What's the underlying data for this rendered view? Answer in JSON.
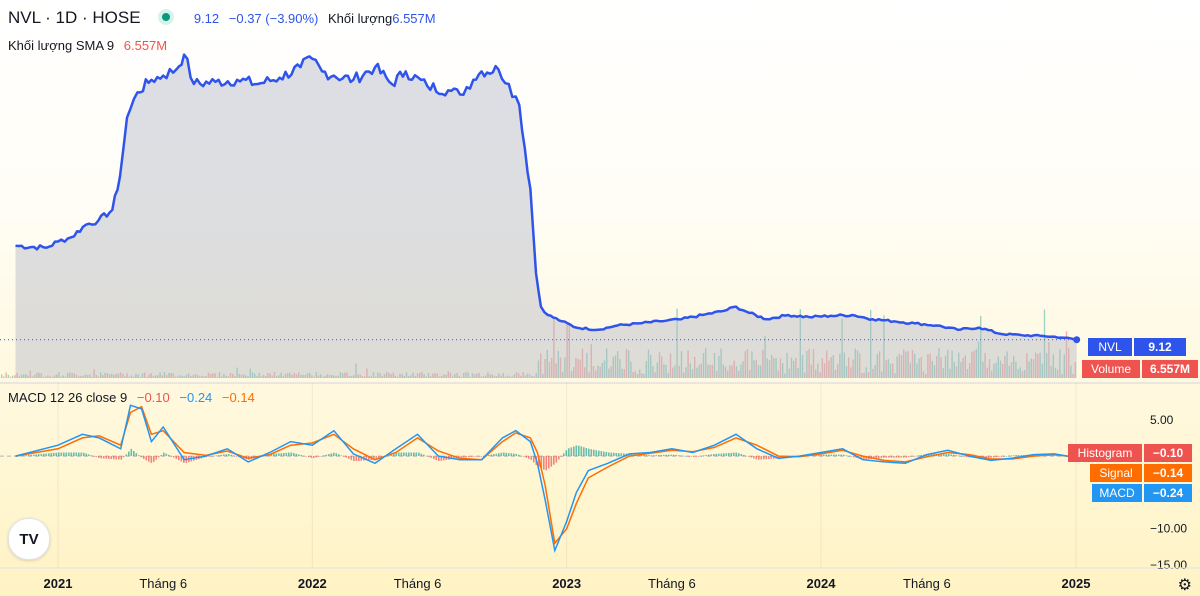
{
  "header": {
    "symbol": "NVL · 1D · HOSE",
    "price": "9.12",
    "change": "−0.37 (−3.90%)",
    "volume_label": "Khối lượng",
    "volume_value": "6.557M",
    "sma_label": "Khối lượng SMA 9",
    "sma_value": "6.557M"
  },
  "macd_legend": {
    "label": "MACD 12 26 close 9",
    "histogram": "−0.10",
    "macd": "−0.24",
    "signal": "−0.14"
  },
  "tags": {
    "price": {
      "name": "NVL",
      "value": "9.12"
    },
    "volume": {
      "name": "Volume",
      "value": "6.557M"
    },
    "histogram": {
      "name": "Histogram",
      "value": "−0.10"
    },
    "signal": {
      "name": "Signal",
      "value": "−0.14"
    },
    "macd": {
      "name": "MACD",
      "value": "−0.24"
    }
  },
  "colors": {
    "price_line": "#2f54eb",
    "macd_line": "#2196f3",
    "signal_line": "#ff6d00",
    "hist_up": "#26a69a",
    "hist_down": "#ef5350",
    "volume_up": "#26a69a",
    "volume_down": "#ef5350"
  },
  "tv_logo": "TV",
  "chart_data": {
    "type": "line",
    "x_ticks": [
      "2021",
      "Tháng 6",
      "2022",
      "Tháng 6",
      "2023",
      "Tháng 6",
      "2024",
      "Tháng 6",
      "2025"
    ],
    "price_series": {
      "name": "NVL",
      "x": [
        "2020-11-01",
        "2020-12-15",
        "2021-01-01",
        "2021-01-20",
        "2021-02-10",
        "2021-02-28",
        "2021-03-20",
        "2021-03-31",
        "2021-04-10",
        "2021-04-25",
        "2021-05-15",
        "2021-06-01",
        "2021-06-20",
        "2021-07-01",
        "2021-07-15",
        "2021-08-15",
        "2021-09-15",
        "2021-10-15",
        "2021-11-15",
        "2021-12-15",
        "2022-01-01",
        "2022-01-15",
        "2022-02-01",
        "2022-03-01",
        "2022-04-01",
        "2022-04-25",
        "2022-05-15",
        "2022-06-15",
        "2022-07-15",
        "2022-08-01",
        "2022-08-20",
        "2022-09-01",
        "2022-09-25",
        "2022-10-10",
        "2022-10-25",
        "2022-11-10",
        "2022-11-18",
        "2022-11-25",
        "2022-12-05",
        "2022-12-25",
        "2023-01-15",
        "2023-02-15",
        "2023-03-15",
        "2023-04-15",
        "2023-05-15",
        "2023-06-15",
        "2023-07-15",
        "2023-08-15",
        "2023-09-01",
        "2023-09-20",
        "2023-10-15",
        "2023-11-15",
        "2023-12-15",
        "2024-01-15",
        "2024-02-15",
        "2024-03-15",
        "2024-04-15",
        "2024-05-15",
        "2024-06-15",
        "2024-07-15",
        "2024-08-15",
        "2024-09-15",
        "2024-10-15",
        "2024-11-15",
        "2024-12-15",
        "2025-01-02"
      ],
      "y": [
        31.5,
        31.0,
        32.5,
        33.5,
        36.5,
        37.5,
        40.0,
        48.0,
        62.0,
        68.0,
        71.0,
        72.0,
        73.5,
        77.0,
        70.0,
        70.5,
        71.0,
        70.0,
        71.5,
        74.0,
        76.0,
        73.0,
        72.0,
        71.0,
        74.0,
        70.0,
        73.0,
        69.5,
        68.5,
        67.5,
        71.0,
        73.0,
        73.5,
        70.0,
        65.0,
        45.0,
        25.0,
        17.0,
        15.0,
        13.5,
        12.0,
        11.5,
        12.5,
        13.0,
        13.5,
        14.0,
        15.0,
        16.0,
        17.0,
        15.5,
        14.0,
        15.0,
        14.5,
        14.8,
        15.0,
        14.0,
        13.5,
        13.0,
        12.5,
        11.5,
        12.0,
        10.5,
        10.2,
        10.0,
        9.6,
        9.12
      ]
    },
    "macd_series": {
      "name": "MACD",
      "x": [
        "2020-11-01",
        "2021-01-01",
        "2021-02-05",
        "2021-03-01",
        "2021-04-01",
        "2021-04-15",
        "2021-05-01",
        "2021-05-15",
        "2021-06-01",
        "2021-07-01",
        "2021-08-01",
        "2021-09-01",
        "2021-10-01",
        "2021-11-01",
        "2021-12-01",
        "2022-01-01",
        "2022-02-01",
        "2022-03-01",
        "2022-04-01",
        "2022-05-01",
        "2022-06-01",
        "2022-07-01",
        "2022-08-01",
        "2022-09-01",
        "2022-10-01",
        "2022-10-20",
        "2022-11-10",
        "2022-11-20",
        "2022-12-01",
        "2022-12-15",
        "2023-01-01",
        "2023-01-15",
        "2023-02-01",
        "2023-03-01",
        "2023-04-01",
        "2023-05-01",
        "2023-06-01",
        "2023-07-01",
        "2023-08-01",
        "2023-09-01",
        "2023-10-01",
        "2023-11-01",
        "2023-12-01",
        "2024-01-01",
        "2024-02-01",
        "2024-03-01",
        "2024-04-01",
        "2024-05-01",
        "2024-06-01",
        "2024-07-01",
        "2024-08-01",
        "2024-09-01",
        "2024-10-01",
        "2024-11-01",
        "2024-12-01",
        "2025-01-02"
      ],
      "y": [
        0,
        1.5,
        3.0,
        2.5,
        1.0,
        7.0,
        6.5,
        2.0,
        4.0,
        -0.5,
        0,
        1.0,
        -0.8,
        0.5,
        2.0,
        1.5,
        3.5,
        0.3,
        -1.0,
        1.0,
        3.0,
        0,
        -0.5,
        -0.5,
        2.5,
        3.5,
        2.0,
        -1.0,
        -6.0,
        -13.0,
        -9.0,
        -5.0,
        -2.0,
        -1.0,
        0.3,
        0.5,
        1.0,
        0.5,
        1.5,
        3.0,
        1.0,
        -0.3,
        0,
        0.5,
        1.0,
        -0.5,
        -0.8,
        -1.0,
        0.2,
        0.8,
        0,
        -0.6,
        -0.3,
        0.2,
        0.3,
        -0.24
      ]
    },
    "signal_series": {
      "name": "Signal",
      "x": [
        "2020-11-01",
        "2021-01-01",
        "2021-02-05",
        "2021-03-01",
        "2021-04-01",
        "2021-04-15",
        "2021-05-01",
        "2021-05-15",
        "2021-06-01",
        "2021-07-01",
        "2021-08-01",
        "2021-09-01",
        "2021-10-01",
        "2021-11-01",
        "2021-12-01",
        "2022-01-01",
        "2022-02-01",
        "2022-03-01",
        "2022-04-01",
        "2022-05-01",
        "2022-06-01",
        "2022-07-01",
        "2022-08-01",
        "2022-09-01",
        "2022-10-01",
        "2022-10-20",
        "2022-11-10",
        "2022-11-20",
        "2022-12-01",
        "2022-12-15",
        "2023-01-01",
        "2023-01-15",
        "2023-02-01",
        "2023-03-01",
        "2023-04-01",
        "2023-05-01",
        "2023-06-01",
        "2023-07-01",
        "2023-08-01",
        "2023-09-01",
        "2023-10-01",
        "2023-11-01",
        "2023-12-01",
        "2024-01-01",
        "2024-02-01",
        "2024-03-01",
        "2024-04-01",
        "2024-05-01",
        "2024-06-01",
        "2024-07-01",
        "2024-08-01",
        "2024-09-01",
        "2024-10-01",
        "2024-11-01",
        "2024-12-01",
        "2025-01-02"
      ],
      "y": [
        0,
        1.0,
        2.5,
        2.8,
        1.5,
        6.0,
        6.8,
        3.0,
        3.5,
        0.5,
        0.1,
        0.7,
        -0.3,
        0.2,
        1.5,
        1.8,
        3.0,
        1.0,
        -0.5,
        0.5,
        2.5,
        0.7,
        -0.3,
        -0.5,
        2.0,
        3.2,
        2.5,
        0.5,
        -4.0,
        -12.0,
        -10.0,
        -6.5,
        -3.0,
        -1.5,
        0,
        0.4,
        0.8,
        0.6,
        1.2,
        2.5,
        1.5,
        0,
        -0.1,
        0.3,
        0.8,
        0,
        -0.6,
        -0.8,
        -0.1,
        0.5,
        0.2,
        -0.4,
        -0.4,
        0,
        0.2,
        -0.14
      ]
    },
    "macd_axis_ticks": [
      "5.00",
      "−10.00",
      "−15.00"
    ],
    "ylim_price": [
      0,
      80
    ],
    "ylim_macd": [
      -15,
      8
    ],
    "grid": false,
    "legend": "top-left"
  }
}
